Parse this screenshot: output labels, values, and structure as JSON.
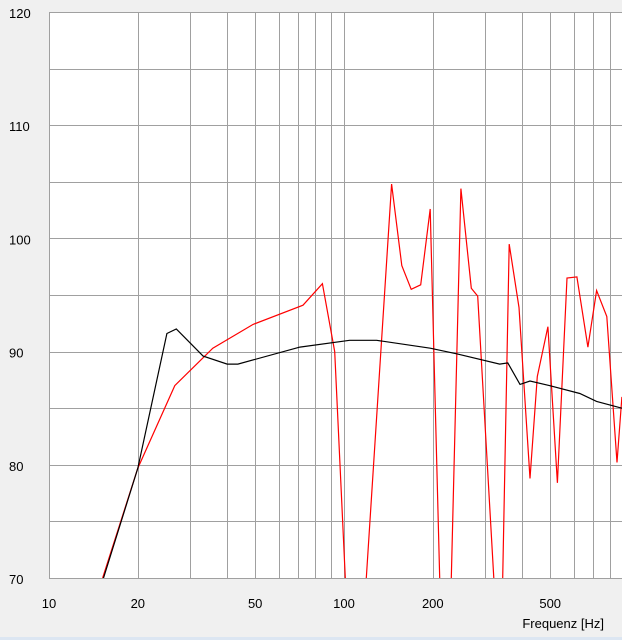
{
  "chart_data": {
    "type": "line",
    "title": "",
    "xlabel": "Frequenz [Hz]",
    "ylabel": "",
    "x_scale": "log",
    "xlim": [
      10,
      875
    ],
    "ylim": [
      70,
      120
    ],
    "grid": true,
    "x_ticks": [
      10,
      20,
      50,
      100,
      200,
      500
    ],
    "x_tick_labels": [
      "10",
      "20",
      "50",
      "100",
      "200",
      "500"
    ],
    "y_ticks": [
      70,
      80,
      90,
      100,
      110,
      120
    ],
    "y_tick_labels": [
      "70",
      "80",
      "90",
      "100",
      "110",
      "120"
    ],
    "series": [
      {
        "color": "#ff0000",
        "x": [
          15.2,
          20,
          26.7,
          35.9,
          49.2,
          72.6,
          84.5,
          93,
          101,
          110,
          119,
          145,
          157,
          169,
          182,
          196,
          211,
          221,
          231,
          249,
          270,
          284,
          322,
          333,
          345,
          363,
          392,
          427,
          452,
          491,
          529,
          570,
          616,
          671,
          718,
          778,
          842,
          875
        ],
        "y": [
          70,
          79.7,
          87.0,
          90.3,
          92.4,
          94.1,
          96.0,
          90,
          70,
          62,
          70,
          104.8,
          97.6,
          95.5,
          95.9,
          102.6,
          70,
          62,
          70,
          104.4,
          95.6,
          94.9,
          70,
          62,
          70,
          99.5,
          93.9,
          78.8,
          87.8,
          92.2,
          78.4,
          96.5,
          96.6,
          90.4,
          95.4,
          93.1,
          80.2,
          86.0
        ]
      },
      {
        "color": "#000000",
        "x": [
          15.3,
          20,
          25.1,
          27.0,
          33.3,
          40.2,
          43.7,
          70.9,
          104.5,
          129,
          196,
          242,
          337,
          359,
          395,
          427,
          497,
          630,
          718,
          875
        ],
        "y": [
          70,
          79.7,
          91.6,
          92.0,
          89.6,
          88.9,
          88.9,
          90.4,
          91.0,
          91.0,
          90.3,
          89.8,
          88.9,
          89.0,
          87.1,
          87.4,
          87.0,
          86.3,
          85.6,
          85.0
        ]
      }
    ]
  }
}
